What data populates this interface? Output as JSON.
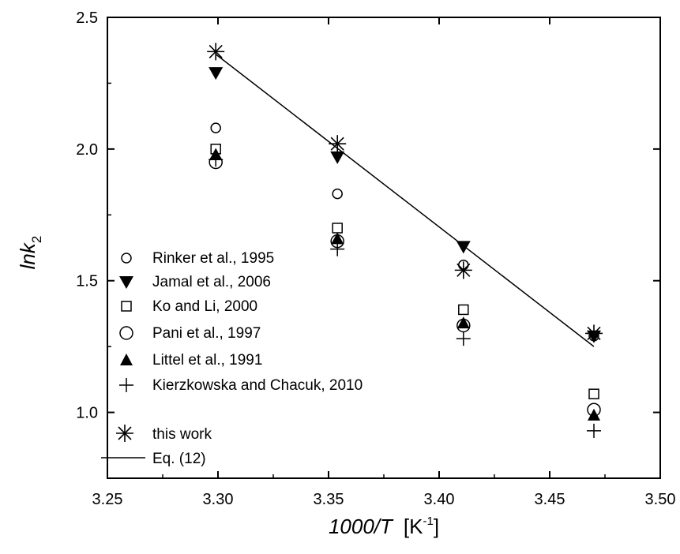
{
  "chart_data": {
    "type": "scatter",
    "xlabel": {
      "italic": "1000/T",
      "unit_pre": "[K",
      "unit_sup": "-1",
      "unit_post": "]"
    },
    "ylabel": {
      "italic": "lnk",
      "sub": "2"
    },
    "xlim": [
      3.25,
      3.5
    ],
    "ylim": [
      0.75,
      2.5
    ],
    "xticks": [
      "3.25",
      "3.30",
      "3.35",
      "3.40",
      "3.45",
      "3.50"
    ],
    "yticks": [
      "1.0",
      "1.5",
      "2.0",
      "2.5"
    ],
    "grid": false,
    "legend_position": "left",
    "series": [
      {
        "name": "Rinker et al., 1995",
        "marker": "circle-small",
        "points": [
          [
            3.299,
            2.08
          ],
          [
            3.354,
            1.83
          ],
          [
            3.411,
            1.56
          ],
          [
            3.47,
            1.29
          ]
        ]
      },
      {
        "name": "Jamal et al., 2006",
        "marker": "triangle-down",
        "points": [
          [
            3.299,
            2.29
          ],
          [
            3.354,
            1.97
          ],
          [
            3.411,
            1.63
          ],
          [
            3.47,
            1.29
          ]
        ]
      },
      {
        "name": "Ko and Li, 2000",
        "marker": "square",
        "points": [
          [
            3.299,
            2.0
          ],
          [
            3.354,
            1.7
          ],
          [
            3.411,
            1.39
          ],
          [
            3.47,
            1.07
          ]
        ]
      },
      {
        "name": "Pani et al., 1997",
        "marker": "circle-large",
        "points": [
          [
            3.299,
            1.95
          ],
          [
            3.354,
            1.65
          ],
          [
            3.411,
            1.33
          ],
          [
            3.47,
            1.01
          ]
        ]
      },
      {
        "name": "Littel et al., 1991",
        "marker": "triangle-up",
        "points": [
          [
            3.299,
            1.98
          ],
          [
            3.354,
            1.66
          ],
          [
            3.411,
            1.34
          ],
          [
            3.47,
            0.99
          ]
        ]
      },
      {
        "name": "Kierzkowska and Chacuk, 2010",
        "marker": "plus",
        "points": [
          [
            3.299,
            1.96
          ],
          [
            3.354,
            1.62
          ],
          [
            3.411,
            1.28
          ],
          [
            3.47,
            0.93
          ]
        ]
      },
      {
        "name": "this work",
        "marker": "asterisk",
        "points": [
          [
            3.299,
            2.37
          ],
          [
            3.354,
            2.02
          ],
          [
            3.411,
            1.54
          ],
          [
            3.47,
            1.3
          ]
        ]
      }
    ],
    "fit_line": {
      "name": "Eq. (12)",
      "points": [
        [
          3.299,
          2.36
        ],
        [
          3.47,
          1.25
        ]
      ]
    }
  }
}
